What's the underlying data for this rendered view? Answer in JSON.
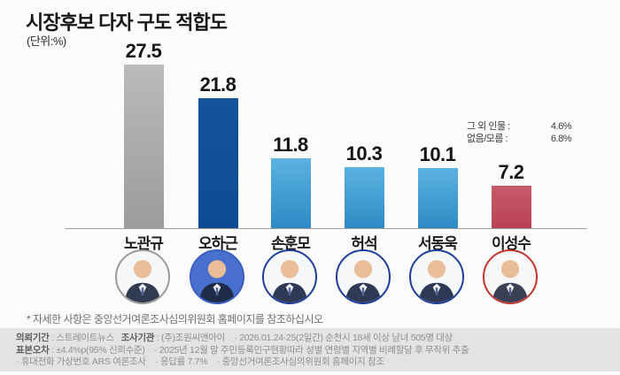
{
  "title": "시장후보 다자 구도 적합도",
  "unit_label": "(단위:%)",
  "chart_data": {
    "type": "bar",
    "title": "시장후보 다자 구도 적합도",
    "unit": "%",
    "categories": [
      "노관규",
      "오하근",
      "손훈모",
      "허석",
      "서동욱",
      "이성수"
    ],
    "values": [
      27.5,
      21.8,
      11.8,
      10.3,
      10.1,
      7.2
    ],
    "ylim": [
      0,
      30
    ],
    "grid": false,
    "legend": "none",
    "annotations": [
      {
        "label": "그 외 인물",
        "value": 4.6
      },
      {
        "label": "없음/모름",
        "value": 6.8
      }
    ]
  },
  "candidates": [
    {
      "name": "노관규",
      "value_label": "27.5",
      "bar_top": "#bababa",
      "bar_bottom": "#9c9c9c",
      "ring": "#9b9b9b",
      "avatar_bg": "#f6f7f9",
      "suit": "#323c50"
    },
    {
      "name": "오하근",
      "value_label": "21.8",
      "bar_top": "#15539f",
      "bar_bottom": "#0f4a94",
      "ring": "#3a5fc0",
      "avatar_bg": "#4a70cf",
      "suit": "#1f2c49"
    },
    {
      "name": "손훈모",
      "value_label": "11.8",
      "bar_top": "#5ab2e0",
      "bar_bottom": "#2e8ac4",
      "ring": "#1d3e9a",
      "avatar_bg": "#f6f7f9",
      "suit": "#2e3a55"
    },
    {
      "name": "허석",
      "value_label": "10.3",
      "bar_top": "#5ab2e0",
      "bar_bottom": "#2e8ac4",
      "ring": "#1d3e9a",
      "avatar_bg": "#f6f7f9",
      "suit": "#2e3a55"
    },
    {
      "name": "서동욱",
      "value_label": "10.1",
      "bar_top": "#5ab2e0",
      "bar_bottom": "#2e8ac4",
      "ring": "#1d3e9a",
      "avatar_bg": "#f6f7f9",
      "suit": "#2e3a55"
    },
    {
      "name": "이성수",
      "value_label": "7.2",
      "bar_top": "#c85b69",
      "bar_bottom": "#b84254",
      "ring": "#c2352b",
      "avatar_bg": "#f6f7f9",
      "suit": "#3a3f52"
    }
  ],
  "side_note": {
    "rows": [
      {
        "label": "그 외 인물 :",
        "value": "4.6%"
      },
      {
        "label": "없음/모름 :",
        "value": "6.8%"
      }
    ]
  },
  "footnote": "* 자세한 사항은 중앙선거여론조사심의위원회 홈페이지를 참조하십시오",
  "footer": {
    "lines": [
      [
        {
          "t": "의뢰기간",
          "b": true
        },
        {
          "t": " : 스트레이트뉴스   "
        },
        {
          "t": "조사기관",
          "b": true
        },
        {
          "t": " : (주)조원씨앤아이    · 2026.01.24-25(2일간) 순천시 18세 이상 남녀 505명 대상"
        }
      ],
      [
        {
          "t": "표본오차",
          "b": true
        },
        {
          "t": " : ±4.4%p(95% 신뢰수준)    · 2025년 12월 말 주민등록인구현황따라 성별 연령별 지역별 비례할당 후 무작위 추출"
        }
      ],
      [
        {
          "t": "· 휴대전화 가상번호 ARS 여론조사    · 응답률 7.7%    · 중앙선거여론조사심의위원회 홈페이지 참조"
        }
      ]
    ]
  },
  "colors": {
    "background": "#fbfbfb",
    "footer_bg": "#e3e3e3",
    "baseline": "#9f9f9f",
    "value_text": "#141414"
  }
}
